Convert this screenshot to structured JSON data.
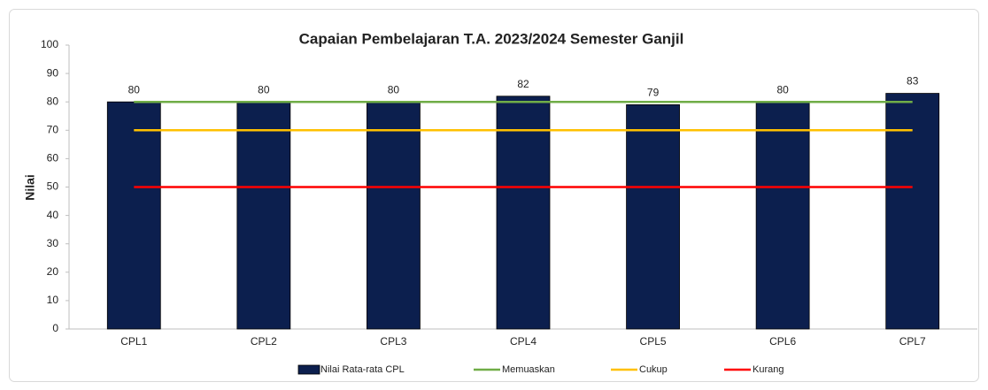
{
  "chart_data": {
    "type": "bar",
    "title": "Capaian Pembelajaran T.A. 2023/2024 Semester Ganjil",
    "y_label": "Nilai",
    "categories": [
      "CPL1",
      "CPL2",
      "CPL3",
      "CPL4",
      "CPL5",
      "CPL6",
      "CPL7"
    ],
    "series": [
      {
        "name": "Nilai Rata-rata CPL",
        "type": "bar",
        "color": "#0c1f4e",
        "values": [
          80,
          80,
          80,
          82,
          79,
          80,
          83
        ],
        "data_labels": true
      },
      {
        "name": "Memuaskan",
        "type": "line",
        "color": "#70ad47",
        "values": [
          80,
          80,
          80,
          80,
          80,
          80,
          80
        ]
      },
      {
        "name": "Cukup",
        "type": "line",
        "color": "#ffc000",
        "values": [
          70,
          70,
          70,
          70,
          70,
          70,
          70
        ]
      },
      {
        "name": "Kurang",
        "type": "line",
        "color": "#ff0000",
        "values": [
          50,
          50,
          50,
          50,
          50,
          50,
          50
        ]
      }
    ],
    "ylim": [
      0,
      100
    ],
    "yticks": [
      0,
      10,
      20,
      30,
      40,
      50,
      60,
      70,
      80,
      90,
      100
    ],
    "grid": false,
    "legend": "bottom"
  }
}
